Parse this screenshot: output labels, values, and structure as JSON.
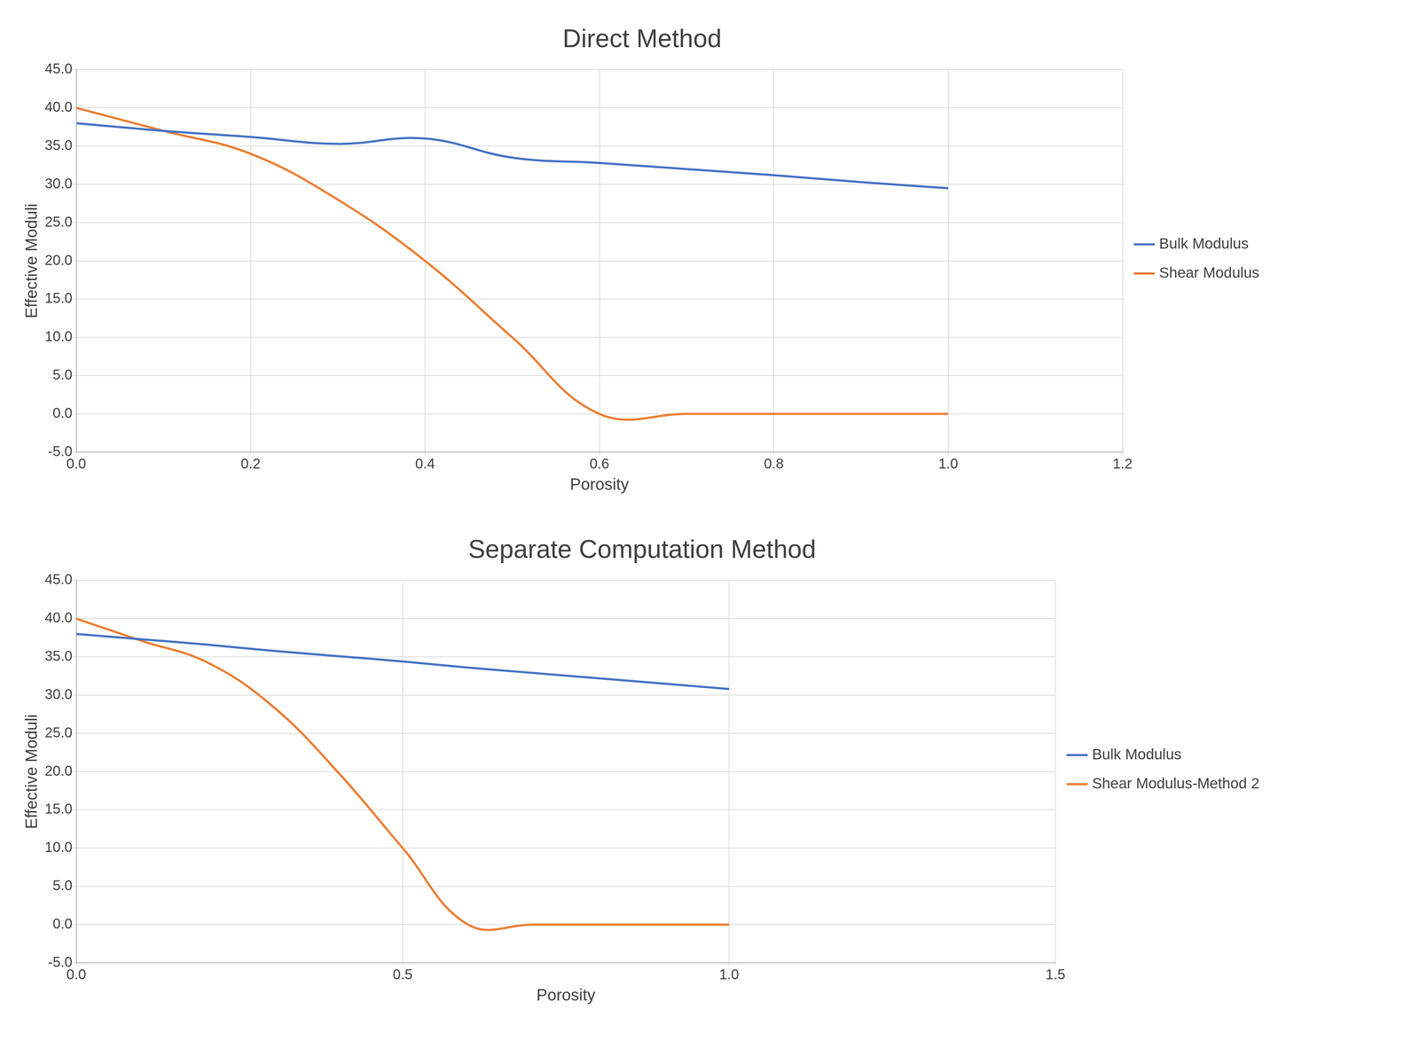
{
  "chart_data": [
    {
      "type": "line",
      "title": "Direct Method",
      "x_label": "Porosity",
      "y_label": "Effective Moduli",
      "x": [
        0.0,
        0.1,
        0.2,
        0.3,
        0.4,
        0.5,
        0.6,
        0.7,
        0.8,
        0.9,
        1.0
      ],
      "series": [
        {
          "name": "Bulk Modulus",
          "color": "#4472c4",
          "marker": "none",
          "line_style": "solid",
          "values": [
            38.0,
            37.0,
            36.2,
            35.3,
            36.0,
            33.5,
            32.8,
            32.0,
            31.2,
            30.3,
            29.5
          ]
        },
        {
          "name": "Shear Modulus",
          "color": "#ed7d31",
          "marker": "none",
          "line_style": "solid",
          "values": [
            40.0,
            37.0,
            34.0,
            28.0,
            20.0,
            10.0,
            0.0,
            0.0,
            0.0,
            0.0,
            0.0
          ]
        }
      ],
      "xlim": [
        0.0,
        1.2
      ],
      "xticks": [
        {
          "value": 0,
          "label": "0.0"
        },
        0.2,
        0.4,
        0.6,
        0.8,
        {
          "value": 1,
          "label": "1.0"
        },
        1.2
      ],
      "ylim": [
        -5,
        45
      ],
      "yticks": [
        {
          "value": -5,
          "label": "-5.0"
        },
        {
          "value": 0,
          "label": "0.0"
        },
        {
          "value": 5,
          "label": "5.0"
        },
        {
          "value": 10,
          "label": "10.0"
        },
        {
          "value": 15,
          "label": "15.0"
        },
        {
          "value": 20,
          "label": "20.0"
        },
        {
          "value": 25,
          "label": "25.0"
        },
        {
          "value": 30,
          "label": "30.0"
        },
        {
          "value": 35,
          "label": "35.0"
        },
        {
          "value": 40,
          "label": "40.0"
        },
        {
          "value": 45,
          "label": "45.0"
        }
      ],
      "grid": true,
      "legend": "right"
    },
    {
      "type": "line",
      "title": "Separate Computation Method",
      "x_label": "Porosity",
      "y_label": "Effective Moduli",
      "x": [
        0.0,
        0.1,
        0.2,
        0.3,
        0.4,
        0.5,
        0.6,
        0.7,
        0.8,
        0.9,
        1.0
      ],
      "series": [
        {
          "name": "Bulk Modulus",
          "color": "#4472c4",
          "marker": "none",
          "line_style": "solid",
          "values": [
            38.0,
            37.3,
            36.6,
            35.8,
            35.1,
            34.4,
            33.6,
            32.9,
            32.2,
            31.5,
            30.8
          ]
        },
        {
          "name": "Shear Modulus-Method 2",
          "color": "#ed7d31",
          "marker": "none",
          "line_style": "solid",
          "values": [
            40.0,
            37.1,
            34.3,
            28.6,
            20.0,
            10.0,
            0.0,
            0.0,
            0.0,
            0.0,
            0.0
          ]
        }
      ],
      "xlim": [
        0.0,
        1.5
      ],
      "xticks": [
        {
          "value": 0,
          "label": "0.0"
        },
        0.5,
        {
          "value": 1,
          "label": "1.0"
        },
        1.5
      ],
      "ylim": [
        -5,
        45
      ],
      "yticks": [
        {
          "value": -5,
          "label": "-5.0"
        },
        {
          "value": 0,
          "label": "0.0"
        },
        {
          "value": 5,
          "label": "5.0"
        },
        {
          "value": 10,
          "label": "10.0"
        },
        {
          "value": 15,
          "label": "15.0"
        },
        {
          "value": 20,
          "label": "20.0"
        },
        {
          "value": 25,
          "label": "25.0"
        },
        {
          "value": 30,
          "label": "30.0"
        },
        {
          "value": 35,
          "label": "35.0"
        },
        {
          "value": 40,
          "label": "40.0"
        },
        {
          "value": 45,
          "label": "45.0"
        }
      ],
      "grid": true,
      "legend": "right"
    }
  ]
}
